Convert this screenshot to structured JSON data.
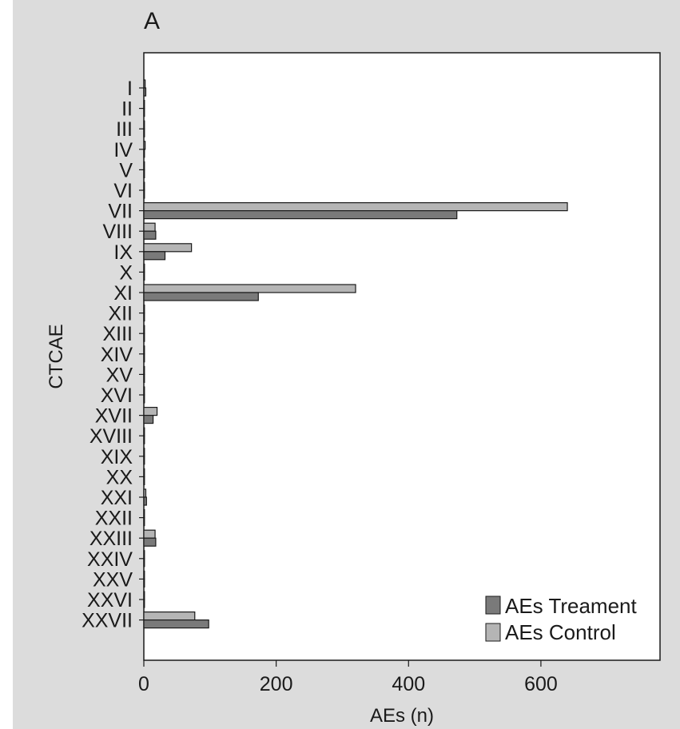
{
  "panel_label": "A",
  "chart_data": {
    "type": "bar",
    "orientation": "horizontal",
    "title": "",
    "xlabel": "AEs (n)",
    "ylabel": "CTCAE",
    "xlim": [
      0,
      780
    ],
    "xticks": [
      0,
      200,
      400,
      600
    ],
    "grid": false,
    "legend_position": "bottom-right",
    "categories": [
      "I",
      "II",
      "III",
      "IV",
      "V",
      "VI",
      "VII",
      "VIII",
      "IX",
      "X",
      "XI",
      "XII",
      "XIII",
      "XIV",
      "XV",
      "XVI",
      "XVII",
      "XVIII",
      "XIX",
      "XX",
      "XXI",
      "XXII",
      "XXIII",
      "XXIV",
      "XXV",
      "XXVI",
      "XXVII"
    ],
    "series": [
      {
        "name": "AEs Control",
        "color": "#b5b5b5",
        "values": [
          2,
          1,
          1,
          2,
          1,
          1,
          640,
          17,
          72,
          1,
          320,
          1,
          1,
          1,
          1,
          1,
          20,
          1,
          1,
          1,
          3,
          1,
          17,
          1,
          1,
          1,
          77
        ]
      },
      {
        "name": "AEs Treament",
        "color": "#7a7a7a",
        "values": [
          3,
          1,
          1,
          1,
          1,
          1,
          473,
          18,
          32,
          1,
          173,
          1,
          1,
          1,
          1,
          1,
          14,
          1,
          1,
          1,
          4,
          1,
          18,
          1,
          1,
          1,
          98
        ]
      }
    ]
  }
}
